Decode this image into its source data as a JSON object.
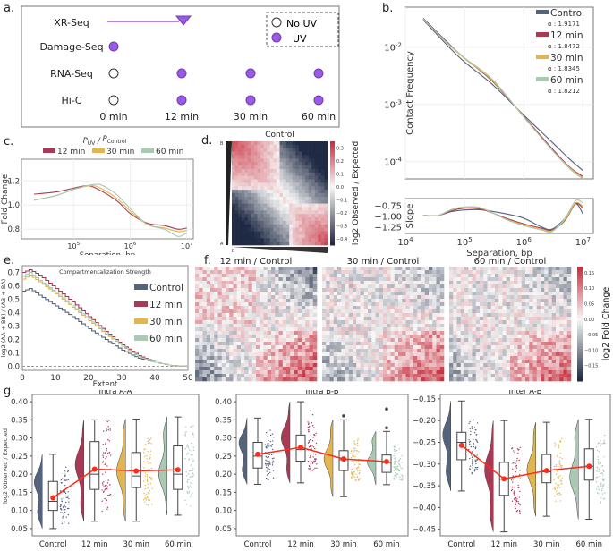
{
  "panels": {
    "a": {
      "label": "a.",
      "rows": [
        "XR-Seq",
        "Damage-Seq",
        "RNA-Seq",
        "Hi-C"
      ],
      "timepoints": [
        "0 min",
        "12 min",
        "30 min",
        "60 min"
      ],
      "legend": {
        "no_uv": "No UV",
        "uv": "UV"
      },
      "grid": [
        {
          "row": "XR-Seq",
          "marks": [
            "line",
            "line",
            "arrow-end",
            "none"
          ]
        },
        {
          "row": "Damage-Seq",
          "marks": [
            "UV",
            "none",
            "none",
            "none"
          ]
        },
        {
          "row": "RNA-Seq",
          "marks": [
            "No UV",
            "UV",
            "UV",
            "UV"
          ]
        },
        {
          "row": "Hi-C",
          "marks": [
            "No UV",
            "UV",
            "UV",
            "UV"
          ]
        }
      ],
      "colors": {
        "uv": "#9b59e6",
        "line": "#9b59e6"
      }
    },
    "b": {
      "label": "b."
    },
    "c": {
      "label": "c."
    },
    "d": {
      "label": "d."
    },
    "e": {
      "label": "e."
    },
    "f": {
      "label": "f."
    },
    "g": {
      "label": "g."
    }
  },
  "colors": {
    "Control": "#56637d",
    "12 min": "#a83a55",
    "30 min": "#e3b54e",
    "60 min": "#a9c9b3",
    "red": "#ff2a1a",
    "heat_pos": "#c8303f",
    "heat_neg": "#1f2a44"
  },
  "chart_data": [
    {
      "id": "b-top",
      "type": "line",
      "title": "",
      "xlabel": "",
      "ylabel": "Contact Frequency",
      "xscale": "log",
      "yscale": "log",
      "xlim": [
        10000,
        15000000
      ],
      "ylim": [
        5e-05,
        0.05
      ],
      "yticks": [
        "10^-2",
        "10^-3",
        "10^-4"
      ],
      "legend_position": "top-right",
      "series": [
        {
          "name": "Control",
          "alpha_label": "α : 1.9171",
          "x": [
            20000,
            50000,
            100000,
            300000,
            1000000,
            3000000,
            6000000,
            10000000
          ],
          "y": [
            0.03,
            0.011,
            0.0055,
            0.0022,
            0.00065,
            0.00022,
            0.00011,
            7e-05
          ]
        },
        {
          "name": "12 min",
          "alpha_label": "α : 1.8472",
          "x": [
            20000,
            50000,
            100000,
            300000,
            1000000,
            3000000,
            6000000,
            10000000
          ],
          "y": [
            0.032,
            0.0125,
            0.0064,
            0.0025,
            0.00062,
            0.00017,
            8e-05,
            5.5e-05
          ]
        },
        {
          "name": "30 min",
          "alpha_label": "α : 1.8345",
          "x": [
            20000,
            50000,
            100000,
            300000,
            1000000,
            3000000,
            6000000,
            10000000
          ],
          "y": [
            0.031,
            0.012,
            0.0063,
            0.0026,
            0.00061,
            0.00016,
            7.8e-05,
            5.2e-05
          ]
        },
        {
          "name": "60 min",
          "alpha_label": "α : 1.8212",
          "x": [
            20000,
            50000,
            100000,
            300000,
            1000000,
            3000000,
            6000000,
            10000000
          ],
          "y": [
            0.031,
            0.012,
            0.0065,
            0.0027,
            0.0006,
            0.00016,
            7.5e-05,
            5e-05
          ]
        }
      ]
    },
    {
      "id": "b-bottom",
      "type": "line",
      "xlabel": "Separation, bp",
      "ylabel": "Slope",
      "xscale": "log",
      "xlim": [
        10000,
        15000000
      ],
      "ylim": [
        -1.4,
        -0.6
      ],
      "yticks": [
        "-0.75",
        "-1.00",
        "-1.25"
      ],
      "xticks": [
        "10^4",
        "10^5",
        "10^6",
        "10^7"
      ],
      "series": [
        {
          "name": "Control",
          "x": [
            20000,
            35000,
            60000,
            100000,
            200000,
            500000,
            1000000,
            2000000,
            3000000,
            5000000,
            7500000,
            10000000
          ],
          "y": [
            -0.98,
            -0.99,
            -0.9,
            -0.86,
            -0.86,
            -0.95,
            -1.05,
            -1.25,
            -1.3,
            -1.05,
            -0.72,
            -0.95
          ]
        },
        {
          "name": "12 min",
          "x": [
            20000,
            35000,
            60000,
            100000,
            200000,
            500000,
            1000000,
            2000000,
            3000000,
            5000000,
            7500000,
            10000000
          ],
          "y": [
            -0.98,
            -0.99,
            -0.88,
            -0.82,
            -0.85,
            -1.05,
            -1.18,
            -1.28,
            -1.32,
            -1.1,
            -0.72,
            -0.82
          ]
        },
        {
          "name": "30 min",
          "x": [
            20000,
            35000,
            60000,
            100000,
            200000,
            500000,
            1000000,
            2000000,
            3000000,
            5000000,
            7500000,
            10000000
          ],
          "y": [
            -0.98,
            -0.99,
            -0.86,
            -0.8,
            -0.83,
            -1.07,
            -1.2,
            -1.3,
            -1.34,
            -1.08,
            -0.7,
            -0.78
          ]
        },
        {
          "name": "60 min",
          "x": [
            20000,
            35000,
            60000,
            100000,
            200000,
            500000,
            1000000,
            2000000,
            3000000,
            5000000,
            7500000,
            10000000
          ],
          "y": [
            -0.98,
            -0.99,
            -0.85,
            -0.79,
            -0.82,
            -1.08,
            -1.22,
            -1.32,
            -1.36,
            -1.05,
            -0.65,
            -0.7
          ]
        }
      ]
    },
    {
      "id": "c",
      "type": "line",
      "title": "P_UV / P_Control",
      "xlabel": "Separation, bp",
      "ylabel": "Fold Change",
      "xscale": "log",
      "xlim": [
        12000,
        13000000
      ],
      "ylim": [
        0.72,
        1.38
      ],
      "yticks": [
        "0.8",
        "1.0",
        "1.2"
      ],
      "xticks": [
        "10^5",
        "10^6",
        "10^7"
      ],
      "legend_position": "top",
      "series": [
        {
          "name": "12 min",
          "x": [
            20000,
            50000,
            100000,
            180000,
            300000,
            600000,
            1000000,
            2000000,
            4000000,
            7000000,
            10000000
          ],
          "y": [
            1.09,
            1.11,
            1.14,
            1.16,
            1.12,
            1.03,
            0.93,
            0.85,
            0.83,
            0.8,
            0.81
          ]
        },
        {
          "name": "30 min",
          "x": [
            20000,
            50000,
            100000,
            200000,
            300000,
            600000,
            1000000,
            2000000,
            4000000,
            7000000,
            10000000
          ],
          "y": [
            1.04,
            1.08,
            1.13,
            1.16,
            1.14,
            1.05,
            0.95,
            0.84,
            0.81,
            0.78,
            0.79
          ]
        },
        {
          "name": "60 min",
          "x": [
            20000,
            50000,
            100000,
            220000,
            330000,
            600000,
            1000000,
            2000000,
            4000000,
            7000000,
            10000000
          ],
          "y": [
            1.04,
            1.08,
            1.13,
            1.17,
            1.16,
            1.08,
            0.97,
            0.84,
            0.8,
            0.74,
            0.77
          ]
        }
      ]
    },
    {
      "id": "d",
      "type": "heatmap",
      "title": "Control",
      "colorbar_label": "log2 Observed / Expected",
      "colorbar_ticks": [
        "0.3",
        "0.2",
        "0.1",
        "0.0",
        "-0.1",
        "-0.2",
        "-0.3",
        "-0.4"
      ],
      "vmin": -0.45,
      "vmax": 0.35,
      "axis_labels": {
        "left_top": "B",
        "left_bottom": "A",
        "bottom_left": "B",
        "bottom_right": "A"
      },
      "description": "saddle plot: B-B top-left positive, A-A bottom-right positive, off-diagonal negative"
    },
    {
      "id": "e",
      "type": "line",
      "title": "Compartmentalization Strength",
      "xlabel": "Extent",
      "ylabel": "log2 (AA + BB) / (AB + BA)",
      "xlim": [
        0,
        50
      ],
      "ylim": [
        -0.03,
        0.75
      ],
      "xticks": [
        "0",
        "10",
        "20",
        "30",
        "40",
        "50"
      ],
      "yticks": [
        "0.0",
        "0.1",
        "0.2",
        "0.3",
        "0.4",
        "0.5",
        "0.6",
        "0.7"
      ],
      "legend_position": "right",
      "series": [
        {
          "name": "Control",
          "x": [
            0,
            2,
            5,
            10,
            15,
            20,
            25,
            30,
            35,
            40,
            45,
            50
          ],
          "y": [
            0.56,
            0.58,
            0.53,
            0.45,
            0.37,
            0.28,
            0.2,
            0.12,
            0.06,
            0.03,
            0.005,
            0
          ]
        },
        {
          "name": "12 min",
          "x": [
            0,
            2,
            5,
            10,
            15,
            20,
            25,
            30,
            35,
            40,
            45,
            50
          ],
          "y": [
            0.7,
            0.72,
            0.68,
            0.58,
            0.48,
            0.37,
            0.26,
            0.16,
            0.08,
            0.03,
            0.005,
            0
          ]
        },
        {
          "name": "30 min",
          "x": [
            0,
            2,
            5,
            10,
            15,
            20,
            25,
            30,
            35,
            40,
            45,
            50
          ],
          "y": [
            0.65,
            0.68,
            0.63,
            0.54,
            0.44,
            0.34,
            0.24,
            0.15,
            0.07,
            0.03,
            0.005,
            0
          ]
        },
        {
          "name": "60 min",
          "x": [
            0,
            2,
            5,
            10,
            15,
            20,
            25,
            30,
            35,
            40,
            45,
            50
          ],
          "y": [
            0.67,
            0.7,
            0.64,
            0.55,
            0.45,
            0.35,
            0.25,
            0.15,
            0.07,
            0.03,
            0.005,
            0
          ]
        }
      ],
      "reference_line": 0
    },
    {
      "id": "f",
      "type": "heatmap",
      "panels": [
        "12 min / Control",
        "30 min / Control",
        "60 min / Control"
      ],
      "colorbar_label": "log2 Fold Change",
      "colorbar_ticks": [
        "0.15",
        "0.10",
        "0.05",
        "0.00",
        "-0.05",
        "-0.10",
        "-0.15"
      ],
      "vmin": -0.2,
      "vmax": 0.17
    },
    {
      "id": "g",
      "type": "box",
      "ylabel": "log2 Observed / Expected",
      "categories": [
        "Control",
        "12 min",
        "30 min",
        "60 min"
      ],
      "subplots": [
        {
          "title": "Intra A-A",
          "ylim": [
            0.03,
            0.42
          ],
          "yticks": [
            "0.05",
            "0.10",
            "0.15",
            "0.20",
            "0.25",
            "0.30",
            "0.35",
            "0.40"
          ],
          "boxes": [
            {
              "min": 0.05,
              "q1": 0.1,
              "median": 0.125,
              "q3": 0.18,
              "max": 0.255,
              "mean": 0.135
            },
            {
              "min": 0.07,
              "q1": 0.158,
              "median": 0.2,
              "q3": 0.29,
              "max": 0.35,
              "mean": 0.214
            },
            {
              "min": 0.07,
              "q1": 0.163,
              "median": 0.195,
              "q3": 0.26,
              "max": 0.352,
              "mean": 0.209
            },
            {
              "min": 0.087,
              "q1": 0.158,
              "median": 0.2,
              "q3": 0.278,
              "max": 0.358,
              "mean": 0.212
            }
          ]
        },
        {
          "title": "Intra B-B",
          "ylim": [
            0.03,
            0.42
          ],
          "yticks": [
            "0.05",
            "0.10",
            "0.15",
            "0.20",
            "0.25",
            "0.30",
            "0.35",
            "0.40"
          ],
          "boxes": [
            {
              "min": 0.172,
              "q1": 0.217,
              "median": 0.25,
              "q3": 0.288,
              "max": 0.355,
              "mean": 0.255
            },
            {
              "min": 0.176,
              "q1": 0.236,
              "median": 0.268,
              "q3": 0.308,
              "max": 0.4,
              "mean": 0.274
            },
            {
              "min": 0.138,
              "q1": 0.21,
              "median": 0.24,
              "q3": 0.265,
              "max": 0.35,
              "mean": 0.242,
              "outliers": [
                0.361
              ]
            },
            {
              "min": 0.171,
              "q1": 0.205,
              "median": 0.232,
              "q3": 0.253,
              "max": 0.318,
              "mean": 0.235,
              "outliers": [
                0.328,
                0.38
              ]
            }
          ]
        },
        {
          "title": "Inter A-B",
          "ylim": [
            -0.465,
            -0.14
          ],
          "yticks": [
            "-0.15",
            "-0.20",
            "-0.25",
            "-0.30",
            "-0.35",
            "-0.40",
            "-0.45"
          ],
          "boxes": [
            {
              "min": -0.362,
              "q1": -0.29,
              "median": -0.25,
              "q3": -0.227,
              "max": -0.155,
              "mean": -0.257
            },
            {
              "min": -0.456,
              "q1": -0.372,
              "median": -0.335,
              "q3": -0.296,
              "max": -0.2,
              "mean": -0.334
            },
            {
              "min": -0.42,
              "q1": -0.343,
              "median": -0.318,
              "q3": -0.278,
              "max": -0.204,
              "mean": -0.315
            },
            {
              "min": -0.427,
              "q1": -0.337,
              "median": -0.305,
              "q3": -0.265,
              "max": -0.197,
              "mean": -0.305
            }
          ]
        }
      ]
    }
  ]
}
